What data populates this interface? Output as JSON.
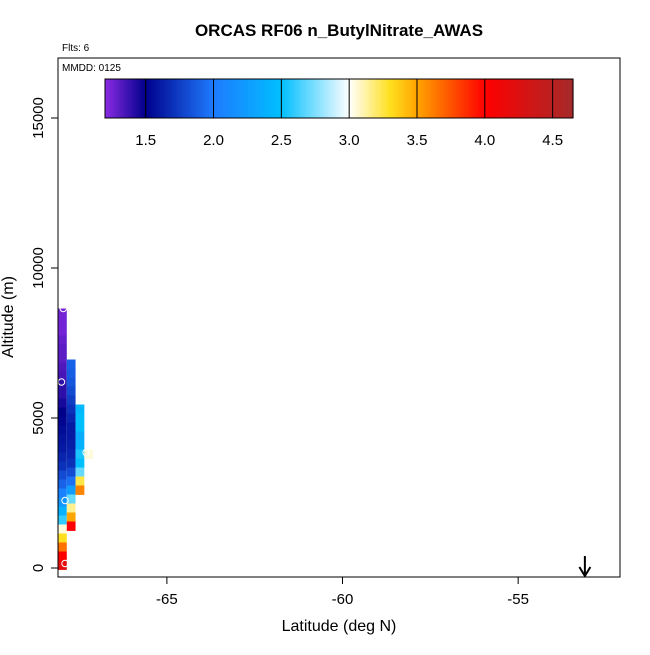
{
  "chart_data": {
    "type": "heatmap",
    "title": "ORCAS RF06 n_ButylNitrate_AWAS",
    "flights_note": "Flts: 6",
    "date_note": "MMDD: 0125",
    "xlabel": "Latitude (deg N)",
    "ylabel": "Altitude (m)",
    "xlim": [
      -68.1,
      -52.1
    ],
    "ylim": [
      -300,
      17000
    ],
    "x_ticks": [
      {
        "value": -65,
        "label": "-65"
      },
      {
        "value": -60,
        "label": "-60"
      },
      {
        "value": -55,
        "label": "-55"
      }
    ],
    "y_ticks": [
      {
        "value": 0,
        "label": "0"
      },
      {
        "value": 5000,
        "label": "5000"
      },
      {
        "value": 10000,
        "label": "10000"
      },
      {
        "value": 15000,
        "label": "15000"
      }
    ],
    "colorbar": {
      "min": 1.2,
      "max": 4.65,
      "ticks": [
        {
          "value": 1.5,
          "label": "1.5"
        },
        {
          "value": 2.0,
          "label": "2.0"
        },
        {
          "value": 2.5,
          "label": "2.5"
        },
        {
          "value": 3.0,
          "label": "3.0"
        },
        {
          "value": 3.5,
          "label": "3.5"
        },
        {
          "value": 4.0,
          "label": "4.0"
        },
        {
          "value": 4.5,
          "label": "4.5"
        }
      ],
      "stops": [
        {
          "value": 1.2,
          "color": "#8a2be2"
        },
        {
          "value": 1.5,
          "color": "#00008b"
        },
        {
          "value": 2.0,
          "color": "#1e7bff"
        },
        {
          "value": 2.5,
          "color": "#00bfff"
        },
        {
          "value": 3.0,
          "color": "#ffffff"
        },
        {
          "value": 3.3,
          "color": "#ffe020"
        },
        {
          "value": 3.5,
          "color": "#ffa500"
        },
        {
          "value": 4.0,
          "color": "#ff0000"
        },
        {
          "value": 4.65,
          "color": "#a52a2a"
        }
      ]
    },
    "columns": [
      {
        "x_from": -68.1,
        "x_to": -67.85,
        "cells": [
          {
            "alt": 8500,
            "value": 1.25
          },
          {
            "alt": 8200,
            "value": 1.25
          },
          {
            "alt": 7900,
            "value": 1.25
          },
          {
            "alt": 7600,
            "value": 1.28
          },
          {
            "alt": 7300,
            "value": 1.3
          },
          {
            "alt": 7000,
            "value": 1.3
          },
          {
            "alt": 6700,
            "value": 1.33
          },
          {
            "alt": 6400,
            "value": 1.35
          },
          {
            "alt": 6100,
            "value": 1.4
          },
          {
            "alt": 5800,
            "value": 1.4
          },
          {
            "alt": 5500,
            "value": 1.45
          },
          {
            "alt": 5200,
            "value": 1.5
          },
          {
            "alt": 4900,
            "value": 1.52
          },
          {
            "alt": 4600,
            "value": 1.55
          },
          {
            "alt": 4300,
            "value": 1.58
          },
          {
            "alt": 4000,
            "value": 1.6
          },
          {
            "alt": 3700,
            "value": 1.65
          },
          {
            "alt": 3400,
            "value": 1.7
          },
          {
            "alt": 3100,
            "value": 1.8
          },
          {
            "alt": 2800,
            "value": 1.9
          },
          {
            "alt": 2500,
            "value": 2.05
          },
          {
            "alt": 2200,
            "value": 2.2
          },
          {
            "alt": 1900,
            "value": 2.4
          },
          {
            "alt": 1600,
            "value": 2.6
          },
          {
            "alt": 1300,
            "value": 3.05
          },
          {
            "alt": 1000,
            "value": 3.3
          },
          {
            "alt": 700,
            "value": 3.65
          },
          {
            "alt": 400,
            "value": 4.0
          },
          {
            "alt": 100,
            "value": 4.2
          }
        ]
      },
      {
        "x_from": -67.85,
        "x_to": -67.6,
        "cells": [
          {
            "alt": 6800,
            "value": 1.9
          },
          {
            "alt": 6500,
            "value": 1.88
          },
          {
            "alt": 6200,
            "value": 1.85
          },
          {
            "alt": 5900,
            "value": 1.8
          },
          {
            "alt": 5600,
            "value": 1.75
          },
          {
            "alt": 5300,
            "value": 1.7
          },
          {
            "alt": 5000,
            "value": 1.65
          },
          {
            "alt": 4700,
            "value": 1.6
          },
          {
            "alt": 4400,
            "value": 1.6
          },
          {
            "alt": 4100,
            "value": 1.62
          },
          {
            "alt": 3800,
            "value": 1.65
          },
          {
            "alt": 3500,
            "value": 1.7
          },
          {
            "alt": 3200,
            "value": 1.8
          },
          {
            "alt": 2900,
            "value": 1.95
          },
          {
            "alt": 2600,
            "value": 2.25
          },
          {
            "alt": 2300,
            "value": 2.7
          },
          {
            "alt": 2000,
            "value": 3.15
          },
          {
            "alt": 1700,
            "value": 3.5
          },
          {
            "alt": 1400,
            "value": 4.0
          }
        ]
      },
      {
        "x_from": -67.6,
        "x_to": -67.35,
        "cells": [
          {
            "alt": 5300,
            "value": 2.45
          },
          {
            "alt": 5000,
            "value": 2.5
          },
          {
            "alt": 4700,
            "value": 2.5
          },
          {
            "alt": 4400,
            "value": 2.35
          },
          {
            "alt": 4100,
            "value": 2.4
          },
          {
            "alt": 3800,
            "value": 2.55
          },
          {
            "alt": 3500,
            "value": 2.5
          },
          {
            "alt": 3200,
            "value": 2.7
          },
          {
            "alt": 2900,
            "value": 3.25
          },
          {
            "alt": 2600,
            "value": 3.6
          }
        ]
      },
      {
        "x_from": -67.35,
        "x_to": -67.1,
        "cells": [
          {
            "alt": 3800,
            "value": 3.05
          }
        ]
      }
    ],
    "sample_points": [
      {
        "lat": -67.95,
        "alt": 8650
      },
      {
        "lat": -68.0,
        "alt": 6200
      },
      {
        "lat": -67.3,
        "alt": 3850
      },
      {
        "lat": -67.9,
        "alt": 2250
      },
      {
        "lat": -67.9,
        "alt": 150
      }
    ],
    "marker": {
      "type": "down-arrow",
      "lat": -53.1
    }
  }
}
